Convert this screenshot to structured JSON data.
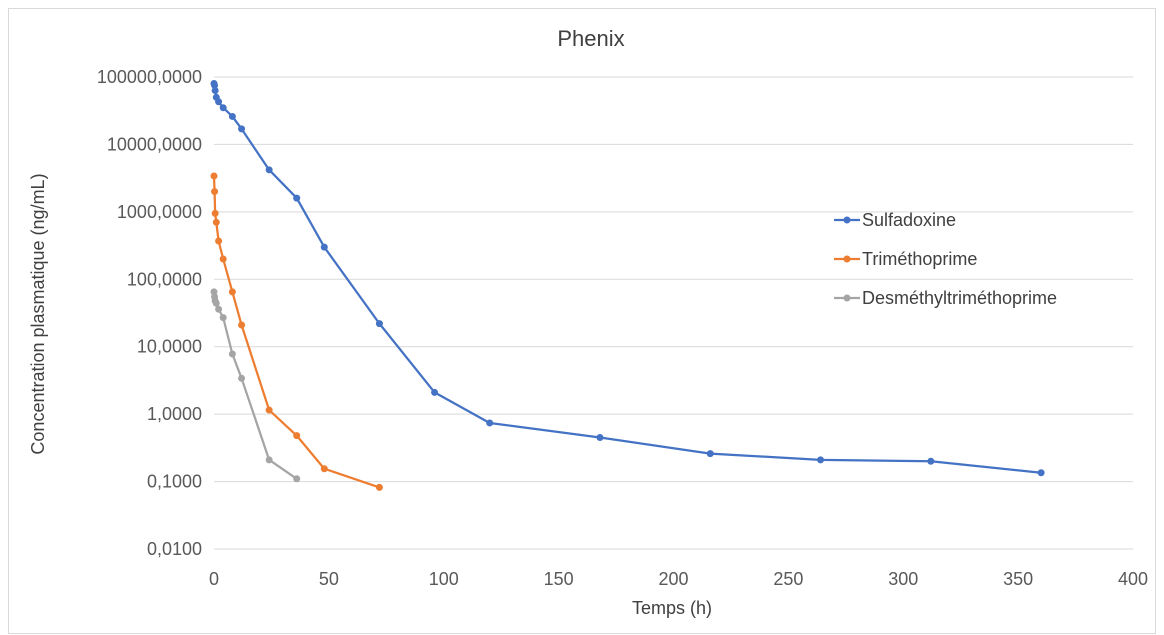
{
  "chart_data": {
    "type": "line",
    "title": "Phenix",
    "xlabel": "Temps (h)",
    "ylabel": "Concentration plasmatique (ng/mL)",
    "x_scale": "linear",
    "y_scale": "log",
    "xlim": [
      0,
      400
    ],
    "ylim": [
      0.01,
      100000
    ],
    "x_ticks": [
      0,
      50,
      100,
      150,
      200,
      250,
      300,
      350,
      400
    ],
    "x_tick_labels": [
      "0",
      "50",
      "100",
      "150",
      "200",
      "250",
      "300",
      "350",
      "400"
    ],
    "y_ticks": [
      0.01,
      0.1,
      1,
      10,
      100,
      1000,
      10000,
      100000
    ],
    "y_tick_labels": [
      "0,0100",
      "0,1000",
      "1,0000",
      "10,0000",
      "100,0000",
      "1000,0000",
      "10000,0000",
      "100000,0000"
    ],
    "grid": "horizontal",
    "legend_position": "right",
    "series": [
      {
        "name": "Sulfadoxine",
        "color": "#4472c4",
        "x": [
          0,
          0.25,
          0.5,
          1,
          2,
          4,
          8,
          12,
          24,
          36,
          48,
          72,
          96,
          120,
          168,
          216,
          264,
          312,
          360
        ],
        "y": [
          80000,
          75000,
          63000,
          50000,
          43000,
          35000,
          26000,
          17000,
          4200,
          1600,
          300,
          22,
          2.1,
          0.74,
          0.45,
          0.26,
          0.21,
          0.2,
          0.135
        ]
      },
      {
        "name": "Triméthoprime",
        "color": "#ed7d31",
        "x": [
          0,
          0.25,
          0.5,
          1,
          2,
          4,
          8,
          12,
          24,
          36,
          48,
          72
        ],
        "y": [
          3400,
          2000,
          950,
          700,
          370,
          200,
          65,
          21,
          1.15,
          0.48,
          0.155,
          0.082
        ]
      },
      {
        "name": "Desméthyltriméthoprime",
        "color": "#a5a5a5",
        "x": [
          0,
          0.25,
          0.5,
          1,
          2,
          4,
          8,
          12,
          24,
          36
        ],
        "y": [
          65,
          55,
          48,
          44,
          36,
          27,
          7.8,
          3.4,
          0.21,
          0.11
        ]
      }
    ]
  }
}
